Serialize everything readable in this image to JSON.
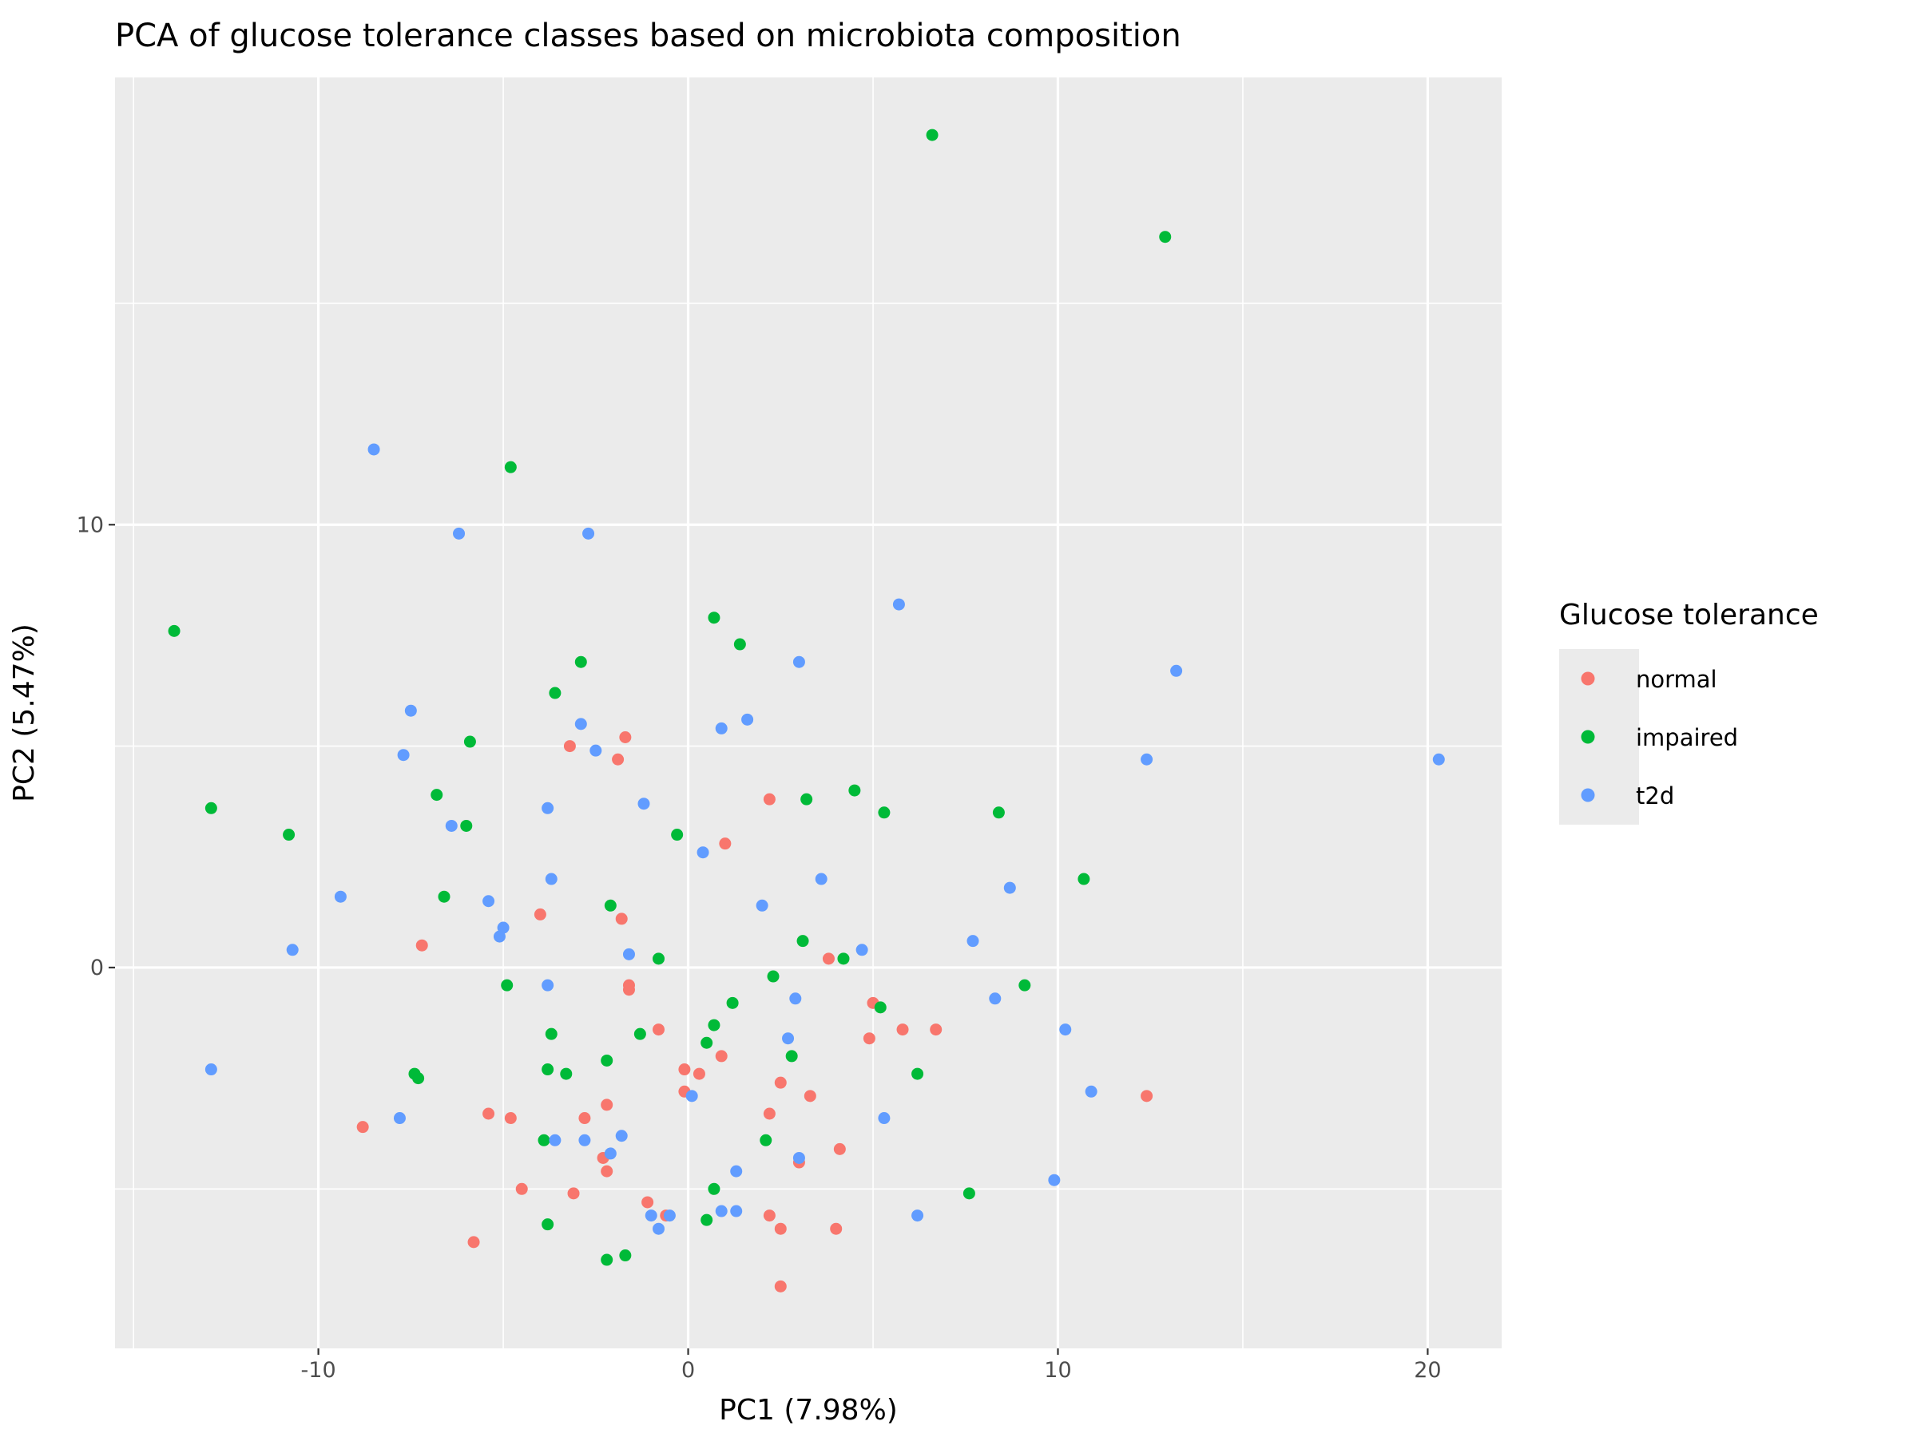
{
  "chart_data": {
    "type": "scatter",
    "title": "PCA of glucose tolerance classes based on microbiota composition",
    "xlabel": "PC1 (7.98%)",
    "ylabel": "PC2 (5.47%)",
    "xlim": [
      -15.5,
      22
    ],
    "ylim": [
      -8.6,
      20.1
    ],
    "x_ticks": [
      -10,
      0,
      10,
      20
    ],
    "x_tick_labels": [
      "-10",
      "0",
      "10",
      "20"
    ],
    "y_ticks": [
      0,
      10
    ],
    "y_tick_labels": [
      "0",
      "10"
    ],
    "x_minor_ticks": [
      -15,
      -5,
      5,
      15
    ],
    "y_minor_ticks": [
      -5,
      5,
      15
    ],
    "grid": true,
    "panel_background": "#EBEBEB",
    "legend": {
      "title": "Glucose tolerance",
      "position": "right"
    },
    "series": [
      {
        "name": "normal",
        "color": "#F8766D",
        "points": [
          [
            -3.2,
            5.0
          ],
          [
            -1.7,
            5.2
          ],
          [
            -1.9,
            4.7
          ],
          [
            2.2,
            3.8
          ],
          [
            1.0,
            2.8
          ],
          [
            -4.0,
            1.2
          ],
          [
            -1.8,
            1.1
          ],
          [
            -7.2,
            0.5
          ],
          [
            3.8,
            0.2
          ],
          [
            -1.6,
            -0.4
          ],
          [
            -1.6,
            -0.5
          ],
          [
            5.0,
            -0.8
          ],
          [
            -0.8,
            -1.4
          ],
          [
            5.8,
            -1.4
          ],
          [
            6.7,
            -1.4
          ],
          [
            4.9,
            -1.6
          ],
          [
            0.9,
            -2.0
          ],
          [
            -0.1,
            -2.3
          ],
          [
            0.3,
            -2.4
          ],
          [
            2.5,
            -2.6
          ],
          [
            -0.1,
            -2.8
          ],
          [
            3.3,
            -2.9
          ],
          [
            12.4,
            -2.9
          ],
          [
            -2.2,
            -3.1
          ],
          [
            2.2,
            -3.3
          ],
          [
            -5.4,
            -3.3
          ],
          [
            -4.8,
            -3.4
          ],
          [
            -2.8,
            -3.4
          ],
          [
            -8.8,
            -3.6
          ],
          [
            4.1,
            -4.1
          ],
          [
            -2.3,
            -4.3
          ],
          [
            -2.2,
            -4.6
          ],
          [
            3.0,
            -4.4
          ],
          [
            -4.5,
            -5.0
          ],
          [
            -3.1,
            -5.1
          ],
          [
            -1.1,
            -5.3
          ],
          [
            -0.6,
            -5.6
          ],
          [
            2.2,
            -5.6
          ],
          [
            2.5,
            -5.9
          ],
          [
            4.0,
            -5.9
          ],
          [
            -5.8,
            -6.2
          ],
          [
            2.5,
            -7.2
          ]
        ]
      },
      {
        "name": "impaired",
        "color": "#00BA38",
        "points": [
          [
            6.6,
            18.8
          ],
          [
            12.9,
            16.5
          ],
          [
            -4.8,
            11.3
          ],
          [
            -13.9,
            7.6
          ],
          [
            0.7,
            7.9
          ],
          [
            1.4,
            7.3
          ],
          [
            -2.9,
            6.9
          ],
          [
            -3.6,
            6.2
          ],
          [
            -5.9,
            5.1
          ],
          [
            -12.9,
            3.6
          ],
          [
            -6.8,
            3.9
          ],
          [
            -6.0,
            3.2
          ],
          [
            4.5,
            4.0
          ],
          [
            3.2,
            3.8
          ],
          [
            5.3,
            3.5
          ],
          [
            8.4,
            3.5
          ],
          [
            -10.8,
            3.0
          ],
          [
            -0.3,
            3.0
          ],
          [
            10.7,
            2.0
          ],
          [
            -6.6,
            1.6
          ],
          [
            -2.1,
            1.4
          ],
          [
            3.1,
            0.6
          ],
          [
            -0.8,
            0.2
          ],
          [
            4.2,
            0.2
          ],
          [
            2.3,
            -0.2
          ],
          [
            -4.9,
            -0.4
          ],
          [
            9.1,
            -0.4
          ],
          [
            1.2,
            -0.8
          ],
          [
            5.2,
            -0.9
          ],
          [
            0.7,
            -1.3
          ],
          [
            -3.7,
            -1.5
          ],
          [
            -1.3,
            -1.5
          ],
          [
            0.5,
            -1.7
          ],
          [
            -2.2,
            -2.1
          ],
          [
            2.8,
            -2.0
          ],
          [
            -3.8,
            -2.3
          ],
          [
            -3.3,
            -2.4
          ],
          [
            -7.4,
            -2.4
          ],
          [
            -7.3,
            -2.5
          ],
          [
            6.2,
            -2.4
          ],
          [
            -3.9,
            -3.9
          ],
          [
            2.1,
            -3.9
          ],
          [
            0.7,
            -5.0
          ],
          [
            7.6,
            -5.1
          ],
          [
            -3.8,
            -5.8
          ],
          [
            0.5,
            -5.7
          ],
          [
            -2.2,
            -6.6
          ],
          [
            -1.7,
            -6.5
          ]
        ]
      },
      {
        "name": "t2d",
        "color": "#619CFF",
        "points": [
          [
            -8.5,
            11.7
          ],
          [
            -6.2,
            9.8
          ],
          [
            -2.7,
            9.8
          ],
          [
            5.7,
            8.2
          ],
          [
            3.0,
            6.9
          ],
          [
            13.2,
            6.7
          ],
          [
            -7.5,
            5.8
          ],
          [
            1.6,
            5.6
          ],
          [
            -2.9,
            5.5
          ],
          [
            0.9,
            5.4
          ],
          [
            -2.5,
            4.9
          ],
          [
            -7.7,
            4.8
          ],
          [
            12.4,
            4.7
          ],
          [
            20.3,
            4.7
          ],
          [
            -1.2,
            3.7
          ],
          [
            -3.8,
            3.6
          ],
          [
            -6.4,
            3.2
          ],
          [
            0.4,
            2.6
          ],
          [
            -3.7,
            2.0
          ],
          [
            3.6,
            2.0
          ],
          [
            8.7,
            1.8
          ],
          [
            -9.4,
            1.6
          ],
          [
            -5.4,
            1.5
          ],
          [
            2.0,
            1.4
          ],
          [
            -5.0,
            0.9
          ],
          [
            -5.1,
            0.7
          ],
          [
            7.7,
            0.6
          ],
          [
            -10.7,
            0.4
          ],
          [
            4.7,
            0.4
          ],
          [
            -1.6,
            0.3
          ],
          [
            -3.8,
            -0.4
          ],
          [
            2.9,
            -0.7
          ],
          [
            8.3,
            -0.7
          ],
          [
            2.7,
            -1.6
          ],
          [
            10.2,
            -1.4
          ],
          [
            -12.9,
            -2.3
          ],
          [
            10.9,
            -2.8
          ],
          [
            0.1,
            -2.9
          ],
          [
            -7.8,
            -3.4
          ],
          [
            5.3,
            -3.4
          ],
          [
            -1.8,
            -3.8
          ],
          [
            -2.8,
            -3.9
          ],
          [
            -3.6,
            -3.9
          ],
          [
            -2.1,
            -4.2
          ],
          [
            3.0,
            -4.3
          ],
          [
            1.3,
            -4.6
          ],
          [
            9.9,
            -4.8
          ],
          [
            0.9,
            -5.5
          ],
          [
            1.3,
            -5.5
          ],
          [
            -1.0,
            -5.6
          ],
          [
            -0.5,
            -5.6
          ],
          [
            6.2,
            -5.6
          ],
          [
            -0.8,
            -5.9
          ]
        ]
      }
    ]
  }
}
